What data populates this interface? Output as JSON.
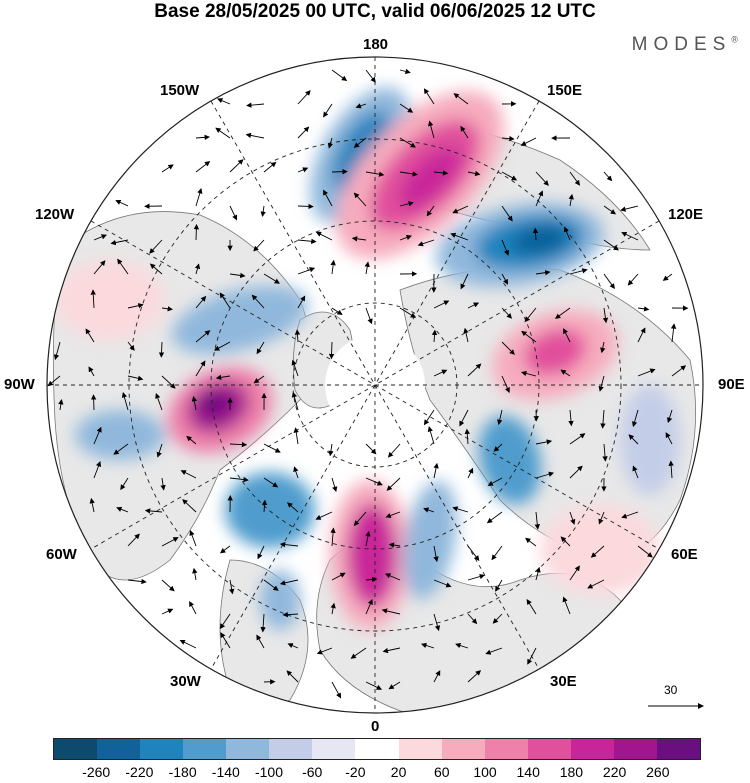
{
  "title": "Base 28/05/2025 00 UTC, valid 06/06/2025 12 UTC",
  "brand": {
    "name": "MODES",
    "mark": "®"
  },
  "longitude_labels": [
    "180",
    "150E",
    "120E",
    "90E",
    "60E",
    "30E",
    "0",
    "30W",
    "60W",
    "90W",
    "120W",
    "150W"
  ],
  "wind_scale": {
    "label": "30"
  },
  "colorbar": {
    "colors": [
      "#0d4a6e",
      "#11619a",
      "#1f83bd",
      "#4f9ccd",
      "#90b8dc",
      "#c3cde8",
      "#e7e6f3",
      "#ffffff",
      "#fbd9dd",
      "#f6acbd",
      "#ee80a9",
      "#e1509c",
      "#c9259a",
      "#a1168f",
      "#6a0f7f"
    ],
    "ticks": [
      "-260",
      "-220",
      "-180",
      "-140",
      "-100",
      "-60",
      "-20",
      "20",
      "60",
      "100",
      "140",
      "180",
      "220",
      "260"
    ]
  }
}
